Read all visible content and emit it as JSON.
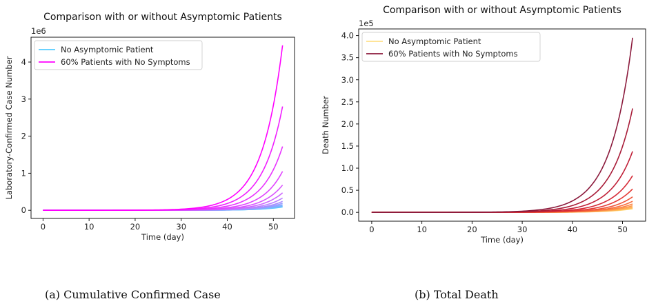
{
  "chart_data": [
    {
      "type": "line",
      "title": "Comparison with or without Asymptomic Patients",
      "xlabel": "Time (day)",
      "ylabel": "Laboratory-Confirmed Case Number",
      "y_offset_text": "1e6",
      "xlim": [
        -2.6,
        54.6
      ],
      "ylim": [
        -0.22,
        4.67
      ],
      "x_ticks": [
        0,
        10,
        20,
        30,
        40,
        50
      ],
      "x_tick_labels": [
        "0",
        "10",
        "20",
        "30",
        "40",
        "50"
      ],
      "y_ticks": [
        0,
        1,
        2,
        3,
        4
      ],
      "y_tick_labels": [
        "0",
        "1",
        "2",
        "3",
        "4"
      ],
      "x": [
        0,
        52
      ],
      "series": [
        {
          "name": "No Asymptomic Patient",
          "color": "#55ccff",
          "final": 0.09
        },
        {
          "color": "#66c2ff",
          "final": 0.1
        },
        {
          "color": "#77b5ff",
          "final": 0.12
        },
        {
          "color": "#88a8ff",
          "final": 0.15
        },
        {
          "color": "#9999ff",
          "final": 0.19
        },
        {
          "color": "#aa8cff",
          "final": 0.24
        },
        {
          "color": "#bb7fff",
          "final": 0.33
        },
        {
          "color": "#cc66ff",
          "final": 0.47
        },
        {
          "color": "#d855ff",
          "final": 0.68
        },
        {
          "color": "#e044ff",
          "final": 1.05
        },
        {
          "color": "#e833ff",
          "final": 1.72
        },
        {
          "color": "#f01fff",
          "final": 2.8
        },
        {
          "name": "60% Patients with No Symptoms",
          "color": "#ff00ff",
          "final": 4.45
        }
      ],
      "legend_position": "top-left",
      "grid": false,
      "caption": "(a) Cumulative Confirmed Case"
    },
    {
      "type": "line",
      "title": "Comparison with or without Asymptomic Patients",
      "xlabel": "Time (day)",
      "ylabel": "Death Number",
      "y_offset_text": "1e5",
      "xlim": [
        -2.6,
        54.6
      ],
      "ylim": [
        -0.2,
        4.15
      ],
      "x_ticks": [
        0,
        10,
        20,
        30,
        40,
        50
      ],
      "x_tick_labels": [
        "0",
        "10",
        "20",
        "30",
        "40",
        "50"
      ],
      "y_ticks": [
        0,
        0.5,
        1,
        1.5,
        2,
        2.5,
        3,
        3.5,
        4
      ],
      "y_tick_labels": [
        "0.0",
        "0.5",
        "1.0",
        "1.5",
        "2.0",
        "2.5",
        "3.0",
        "3.5",
        "4.0"
      ],
      "x": [
        0,
        52
      ],
      "series": [
        {
          "name": "No Asymptomic Patient",
          "color": "#ffe08a",
          "final": 0.08
        },
        {
          "color": "#ffd070",
          "final": 0.09
        },
        {
          "color": "#ffbf60",
          "final": 0.1
        },
        {
          "color": "#ffad55",
          "final": 0.12
        },
        {
          "color": "#fd9a4c",
          "final": 0.15
        },
        {
          "color": "#fb8444",
          "final": 0.19
        },
        {
          "color": "#f76c3e",
          "final": 0.25
        },
        {
          "color": "#ef553a",
          "final": 0.35
        },
        {
          "color": "#e43a36",
          "final": 0.53
        },
        {
          "color": "#d52a36",
          "final": 0.83
        },
        {
          "color": "#c01f37",
          "final": 1.38
        },
        {
          "color": "#a81c38",
          "final": 2.35
        },
        {
          "name": "60% Patients with No Symptoms",
          "color": "#8b1a3c",
          "final": 3.95
        }
      ],
      "legend_position": "top-left",
      "grid": false,
      "caption": "(b) Total Death"
    }
  ]
}
